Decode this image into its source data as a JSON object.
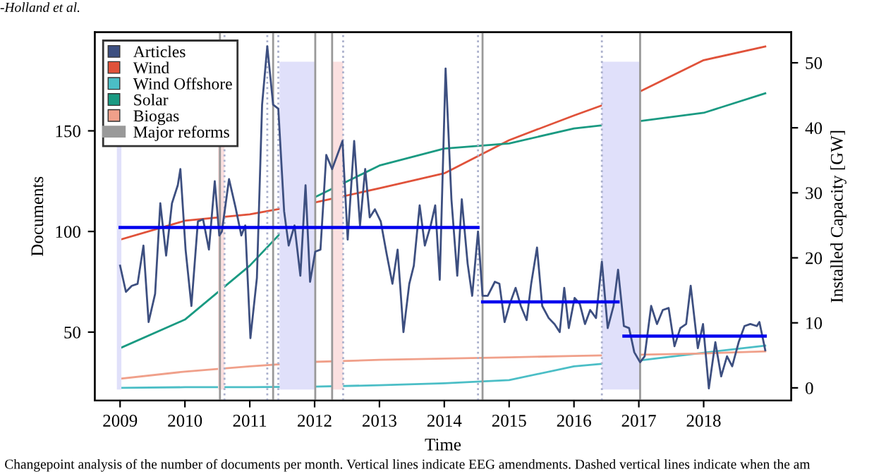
{
  "chart_data": {
    "type": "line",
    "xlabel": "Time",
    "ylabel": "Documents",
    "y2label": "Installed Capacity [GW]",
    "annotations": [
      "-Holland et al.",
      "Changepoint analysis of the number of documents per month. Vertical lines indicate EEG amendments. Dashed vertical lines indicate when the am"
    ],
    "xlim": [
      2008.61,
      2019.35
    ],
    "xticks": [
      2009,
      2010,
      2011,
      2012,
      2013,
      2014,
      2015,
      2016,
      2017,
      2018
    ],
    "ylim": [
      16,
      199
    ],
    "yticks": [
      50,
      100,
      150
    ],
    "y2lim": [
      -1.95,
      54.7
    ],
    "y2ticks": [
      0,
      10,
      20,
      30,
      40,
      50
    ],
    "grid": false,
    "legend": "top left",
    "marker": "none",
    "line_style": "solid",
    "series": [
      {
        "name": "Articles",
        "color": "#3d4f80",
        "x": [
          2009.0,
          2009.09,
          2009.18,
          2009.27,
          2009.36,
          2009.44,
          2009.54,
          2009.62,
          2009.71,
          2009.8,
          2009.89,
          2009.93,
          2010.01,
          2010.1,
          2010.2,
          2010.28,
          2010.37,
          2010.46,
          2010.53,
          2010.57,
          2010.68,
          2010.78,
          2010.87,
          2010.93,
          2011.01,
          2011.11,
          2011.19,
          2011.27,
          2011.36,
          2011.44,
          2011.53,
          2011.6,
          2011.69,
          2011.78,
          2011.86,
          2011.93,
          2012.01,
          2012.09,
          2012.18,
          2012.27,
          2012.43,
          2012.51,
          2012.61,
          2012.7,
          2012.78,
          2012.85,
          2012.93,
          2013.02,
          2013.11,
          2013.2,
          2013.28,
          2013.37,
          2013.46,
          2013.53,
          2013.62,
          2013.7,
          2013.79,
          2013.86,
          2013.93,
          2014.02,
          2014.11,
          2014.2,
          2014.27,
          2014.36,
          2014.43,
          2014.52,
          2014.59,
          2014.67,
          2014.78,
          2014.85,
          2014.93,
          2015.01,
          2015.1,
          2015.18,
          2015.27,
          2015.34,
          2015.43,
          2015.51,
          2015.61,
          2015.7,
          2015.78,
          2015.85,
          2015.92,
          2016.01,
          2016.09,
          2016.17,
          2016.25,
          2016.34,
          2016.43,
          2016.52,
          2016.61,
          2016.68,
          2016.77,
          2016.85,
          2016.93,
          2017.02,
          2017.09,
          2017.19,
          2017.28,
          2017.37,
          2017.46,
          2017.55,
          2017.64,
          2017.73,
          2017.8,
          2017.91,
          2017.99,
          2018.08,
          2018.18,
          2018.27,
          2018.36,
          2018.44,
          2018.54,
          2018.63,
          2018.72,
          2018.82,
          2018.86,
          2018.95
        ],
        "values": [
          83,
          70,
          73,
          74,
          93,
          55,
          69,
          114,
          88,
          114,
          123,
          131,
          91,
          63,
          105,
          106,
          91,
          125,
          98,
          100,
          126,
          112,
          98,
          103,
          47,
          77,
          163,
          192,
          163,
          161,
          110,
          93,
          103,
          78,
          123,
          75,
          90,
          91,
          138,
          131,
          145,
          96,
          145,
          103,
          131,
          107,
          111,
          105,
          89,
          74,
          91,
          50,
          74,
          83,
          113,
          93,
          103,
          113,
          76,
          181,
          116,
          78,
          116,
          84,
          68,
          100,
          68,
          68,
          75,
          74,
          55,
          64,
          72,
          63,
          56,
          74,
          92,
          63,
          57,
          54,
          50,
          72,
          52,
          67,
          64,
          54,
          61,
          57,
          85,
          52,
          63,
          81,
          53,
          52,
          40,
          35,
          38,
          63,
          54,
          61,
          62,
          43,
          52,
          54,
          73,
          42,
          54,
          22,
          45,
          28,
          38,
          33,
          45,
          53,
          54,
          53,
          55,
          41
        ]
      },
      {
        "color": "#0000ee",
        "x": [
          2009.0,
          2014.52
        ],
        "values": [
          102,
          102
        ]
      },
      {
        "color": "#0000ee",
        "x": [
          2014.59,
          2016.68
        ],
        "values": [
          65,
          65
        ]
      },
      {
        "color": "#0000ee",
        "x": [
          2016.77,
          2018.95
        ],
        "values": [
          48,
          48
        ]
      },
      {
        "name": "Wind",
        "color": "#e0523a",
        "axis": "y2",
        "x": [
          2009,
          2010,
          2011,
          2012,
          2013,
          2014,
          2015,
          2016,
          2017,
          2018,
          2018.95
        ],
        "values": [
          22.8,
          25.7,
          26.7,
          28.5,
          30.7,
          33.0,
          38.1,
          41.9,
          45.5,
          50.4,
          52.5
        ]
      },
      {
        "name": "Wind Offshore",
        "color": "#4bbec6",
        "axis": "y2",
        "x": [
          2009,
          2010,
          2011,
          2012,
          2013,
          2014,
          2015,
          2016,
          2017,
          2018,
          2018.95
        ],
        "values": [
          0,
          0.1,
          0.1,
          0.2,
          0.4,
          0.7,
          1.2,
          3.3,
          4.2,
          5.4,
          6.5
        ]
      },
      {
        "name": "Solar",
        "color": "#1a9a82",
        "axis": "y2",
        "x": [
          2009,
          2010,
          2011,
          2012,
          2013,
          2014,
          2015,
          2016,
          2017,
          2018,
          2018.95
        ],
        "values": [
          6.1,
          10.5,
          18.8,
          29.3,
          34.2,
          36.8,
          37.6,
          39.9,
          41.0,
          42.3,
          45.3
        ]
      },
      {
        "name": "Biogas",
        "color": "#f0a08a",
        "axis": "y2",
        "x": [
          2009,
          2010,
          2011,
          2012,
          2013,
          2014,
          2015,
          2016,
          2017,
          2018,
          2018.95
        ],
        "values": [
          1.4,
          2.5,
          3.3,
          4.0,
          4.3,
          4.5,
          4.7,
          4.9,
          5.1,
          5.3,
          5.6
        ]
      }
    ],
    "ref_lines": [
      {
        "axis": "x",
        "value": 2010.54,
        "label": "Major reforms",
        "color": "#999999",
        "line_style": "solid"
      },
      {
        "axis": "x",
        "value": 2011.36,
        "color": "#999999",
        "line_style": "solid"
      },
      {
        "axis": "x",
        "value": 2012.01,
        "color": "#999999",
        "line_style": "solid"
      },
      {
        "axis": "x",
        "value": 2012.27,
        "color": "#999999",
        "line_style": "solid"
      },
      {
        "axis": "x",
        "value": 2014.59,
        "color": "#999999",
        "line_style": "solid"
      },
      {
        "axis": "x",
        "value": 2017.02,
        "color": "#999999",
        "line_style": "solid"
      },
      {
        "axis": "x",
        "value": 2010.61,
        "color": "#aab0cc",
        "line_style": "dotted"
      },
      {
        "axis": "x",
        "value": 2011.27,
        "color": "#aab0cc",
        "line_style": "dotted"
      },
      {
        "axis": "x",
        "value": 2011.44,
        "color": "#aab0cc",
        "line_style": "dotted"
      },
      {
        "axis": "x",
        "value": 2012.44,
        "color": "#aab0cc",
        "line_style": "dotted"
      },
      {
        "axis": "x",
        "value": 2014.52,
        "color": "#aab0cc",
        "line_style": "dotted"
      },
      {
        "axis": "x",
        "value": 2016.43,
        "color": "#aab0cc",
        "line_style": "dotted"
      }
    ],
    "bands": [
      {
        "axis": "x",
        "from": 2008.95,
        "to": 2009.02,
        "color": "#e0e0fa"
      },
      {
        "axis": "x",
        "from": 2011.46,
        "to": 2012.01,
        "color": "#e0e0fa"
      },
      {
        "axis": "x",
        "from": 2016.43,
        "to": 2017.02,
        "color": "#e0e0fa"
      },
      {
        "axis": "x",
        "from": 2010.51,
        "to": 2010.61,
        "color": "#fbe0e0"
      },
      {
        "axis": "x",
        "from": 2012.28,
        "to": 2012.44,
        "color": "#fbe0e0"
      }
    ]
  }
}
